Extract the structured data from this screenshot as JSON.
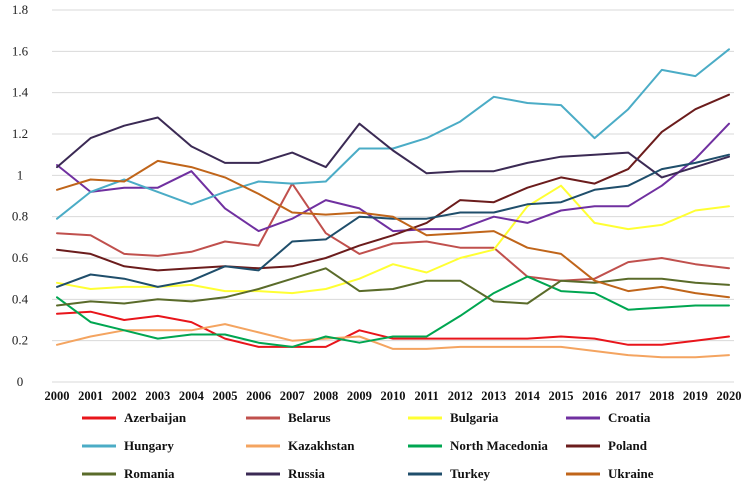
{
  "chart_data": {
    "type": "line",
    "title": "",
    "xlabel": "",
    "ylabel": "",
    "ylim": [
      0,
      1.8
    ],
    "yticks": [
      "0",
      "0.2",
      "0.4",
      "0.6",
      "0.8",
      "1",
      "1.2",
      "1.4",
      "1.6",
      "1.8"
    ],
    "grid": true,
    "legend_position": "bottom",
    "x": [
      "2000",
      "2001",
      "2002",
      "2003",
      "2004",
      "2005",
      "2006",
      "2007",
      "2008",
      "2009",
      "2010",
      "2011",
      "2012",
      "2013",
      "2014",
      "2015",
      "2016",
      "2017",
      "2018",
      "2019",
      "2020"
    ],
    "series": [
      {
        "name": "Azerbaijan",
        "color": "#e8151b",
        "values": [
          0.33,
          0.34,
          0.3,
          0.32,
          0.29,
          0.21,
          0.17,
          0.17,
          0.17,
          0.25,
          0.21,
          0.21,
          0.21,
          0.21,
          0.21,
          0.22,
          0.21,
          0.18,
          0.18,
          0.2,
          0.22
        ]
      },
      {
        "name": "Belarus",
        "color": "#c0504d",
        "values": [
          0.72,
          0.71,
          0.62,
          0.61,
          0.63,
          0.68,
          0.66,
          0.96,
          0.72,
          0.62,
          0.67,
          0.68,
          0.65,
          0.65,
          0.51,
          0.49,
          0.5,
          0.58,
          0.6,
          0.57,
          0.55
        ]
      },
      {
        "name": "Bulgaria",
        "color": "#ffff33",
        "values": [
          0.48,
          0.45,
          0.46,
          0.46,
          0.47,
          0.44,
          0.44,
          0.43,
          0.45,
          0.5,
          0.57,
          0.53,
          0.6,
          0.64,
          0.85,
          0.95,
          0.77,
          0.74,
          0.76,
          0.83,
          0.85
        ]
      },
      {
        "name": "Croatia",
        "color": "#7030a0",
        "values": [
          1.05,
          0.92,
          0.94,
          0.94,
          1.02,
          0.84,
          0.73,
          0.79,
          0.88,
          0.84,
          0.73,
          0.74,
          0.74,
          0.8,
          0.77,
          0.83,
          0.85,
          0.85,
          0.95,
          1.08,
          1.25
        ]
      },
      {
        "name": "Hungary",
        "color": "#4bacc6",
        "values": [
          0.79,
          0.92,
          0.98,
          0.92,
          0.86,
          0.92,
          0.97,
          0.96,
          0.97,
          1.13,
          1.13,
          1.18,
          1.26,
          1.38,
          1.35,
          1.34,
          1.18,
          1.32,
          1.51,
          1.48,
          1.61
        ]
      },
      {
        "name": "Kazakhstan",
        "color": "#f4a460",
        "values": [
          0.18,
          0.22,
          0.25,
          0.25,
          0.25,
          0.28,
          0.24,
          0.2,
          0.21,
          0.22,
          0.16,
          0.16,
          0.17,
          0.17,
          0.17,
          0.17,
          0.15,
          0.13,
          0.12,
          0.12,
          0.13
        ]
      },
      {
        "name": "North Macedonia",
        "color": "#00a651",
        "values": [
          0.41,
          0.29,
          0.25,
          0.21,
          0.23,
          0.23,
          0.19,
          0.17,
          0.22,
          0.19,
          0.22,
          0.22,
          0.32,
          0.43,
          0.51,
          0.44,
          0.43,
          0.35,
          0.36,
          0.37,
          0.37
        ]
      },
      {
        "name": "Poland",
        "color": "#6b1c1c",
        "values": [
          0.64,
          0.62,
          0.56,
          0.54,
          0.55,
          0.56,
          0.55,
          0.56,
          0.6,
          0.66,
          0.71,
          0.77,
          0.88,
          0.87,
          0.94,
          0.99,
          0.96,
          1.03,
          1.21,
          1.32,
          1.39
        ]
      },
      {
        "name": "Romania",
        "color": "#5a6b2a",
        "values": [
          0.37,
          0.39,
          0.38,
          0.4,
          0.39,
          0.41,
          0.45,
          0.5,
          0.55,
          0.44,
          0.45,
          0.49,
          0.49,
          0.39,
          0.38,
          0.49,
          0.48,
          0.5,
          0.5,
          0.48,
          0.47
        ]
      },
      {
        "name": "Russia",
        "color": "#3b2a54",
        "values": [
          1.04,
          1.18,
          1.24,
          1.28,
          1.14,
          1.06,
          1.06,
          1.11,
          1.04,
          1.25,
          1.12,
          1.01,
          1.02,
          1.02,
          1.06,
          1.09,
          1.1,
          1.11,
          0.99,
          1.04,
          1.09
        ]
      },
      {
        "name": "Turkey",
        "color": "#1f4e6b",
        "values": [
          0.46,
          0.52,
          0.5,
          0.46,
          0.49,
          0.56,
          0.54,
          0.68,
          0.69,
          0.8,
          0.79,
          0.79,
          0.82,
          0.82,
          0.86,
          0.87,
          0.93,
          0.95,
          1.03,
          1.06,
          1.1
        ]
      },
      {
        "name": "Ukraine",
        "color": "#c0651a",
        "values": [
          0.93,
          0.98,
          0.97,
          1.07,
          1.04,
          0.99,
          0.91,
          0.82,
          0.81,
          0.82,
          0.8,
          0.71,
          0.72,
          0.73,
          0.65,
          0.62,
          0.49,
          0.44,
          0.46,
          0.43,
          0.41
        ]
      }
    ]
  }
}
